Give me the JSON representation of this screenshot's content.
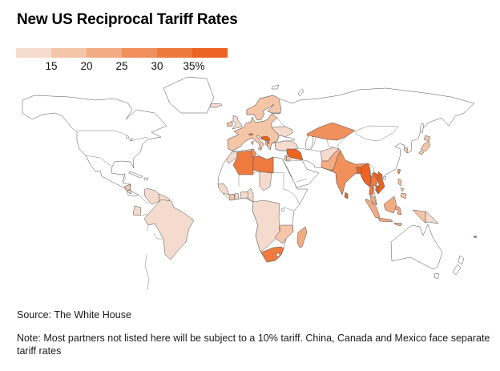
{
  "title": "New US Reciprocal Tariff Rates",
  "legend": {
    "labels": [
      "15",
      "20",
      "25",
      "30",
      "35%"
    ],
    "colors": [
      "#f5dbcd",
      "#f5c5a8",
      "#f3ab83",
      "#f0905c",
      "#ee7a3e",
      "#ec6424"
    ]
  },
  "source": "Source: The White House",
  "note": "Note: Most partners not listed here will be subject to a 10% tariff. China, Canada and Mexico face separate tariff rates",
  "map": {
    "ocean_color": "#ffffff",
    "land_color": "#ffffff",
    "border_color": "#4d4d4d"
  },
  "chart_data": {
    "type": "heatmap",
    "subtype": "world-choropleth",
    "title": "New US Reciprocal Tariff Rates",
    "legend_ticks": [
      15,
      20,
      25,
      30,
      35
    ],
    "legend_tick_suffix": "%",
    "bucket_ranges": [
      "<15",
      "15-20",
      "20-25",
      "25-30",
      "30-35",
      ">35"
    ],
    "bucket_colors": [
      "#f5dbcd",
      "#f5c5a8",
      "#f3ab83",
      "#f0905c",
      "#ee7a3e",
      "#ec6424"
    ],
    "uncolored_note": "White countries (US, Canada, Mexico, China, Russia, Australia, most of Middle East, Andean states) are not shaded",
    "regions": [
      {
        "name": "nicaragua",
        "bucket": 1
      },
      {
        "name": "costa-rica",
        "bucket": 0
      },
      {
        "name": "venezuela",
        "bucket": 0
      },
      {
        "name": "guyana",
        "bucket": 0
      },
      {
        "name": "ecuador",
        "bucket": 0
      },
      {
        "name": "brazil",
        "bucket": 0
      },
      {
        "name": "iceland",
        "bucket": 0
      },
      {
        "name": "uk",
        "bucket": 0
      },
      {
        "name": "ireland",
        "bucket": 1
      },
      {
        "name": "eu-mainland",
        "bucket": 1
      },
      {
        "name": "scandinavia",
        "bucket": 1
      },
      {
        "name": "sicily",
        "bucket": 1
      },
      {
        "name": "sardinia",
        "bucket": 1
      },
      {
        "name": "switzerland",
        "bucket": 4
      },
      {
        "name": "balkans-serbia-bosnia",
        "bucket": 5
      },
      {
        "name": "albania",
        "bucket": 0
      },
      {
        "name": "north-macedonia",
        "bucket": 4
      },
      {
        "name": "moldova",
        "bucket": 4
      },
      {
        "name": "ukraine",
        "bucket": 0
      },
      {
        "name": "turkey",
        "bucket": 0
      },
      {
        "name": "morocco",
        "bucket": 0
      },
      {
        "name": "algeria",
        "bucket": 4
      },
      {
        "name": "tunisia",
        "bucket": 3
      },
      {
        "name": "libya",
        "bucket": 4
      },
      {
        "name": "west-africa",
        "bucket": 0
      },
      {
        "name": "cote-divoire",
        "bucket": 1
      },
      {
        "name": "ghana",
        "bucket": 0
      },
      {
        "name": "nigeria",
        "bucket": 0
      },
      {
        "name": "cameroon",
        "bucket": 0
      },
      {
        "name": "chad",
        "bucket": 0
      },
      {
        "name": "central-southern-africa",
        "bucket": 0
      },
      {
        "name": "zimbabwe-mozambique",
        "bucket": 1
      },
      {
        "name": "south-africa",
        "bucket": 4
      },
      {
        "name": "madagascar",
        "bucket": 2
      },
      {
        "name": "iraq-syria",
        "bucket": 5
      },
      {
        "name": "jordan",
        "bucket": 1
      },
      {
        "name": "israel",
        "bucket": 1
      },
      {
        "name": "kazakhstan",
        "bucket": 3
      },
      {
        "name": "afghanistan",
        "bucket": 0
      },
      {
        "name": "pakistan",
        "bucket": 2
      },
      {
        "name": "india",
        "bucket": 3
      },
      {
        "name": "bangladesh",
        "bucket": 5
      },
      {
        "name": "sri-lanka",
        "bucket": 5
      },
      {
        "name": "myanmar",
        "bucket": 5
      },
      {
        "name": "thailand",
        "bucket": 4
      },
      {
        "name": "laos",
        "bucket": 5
      },
      {
        "name": "vietnam",
        "bucket": 5
      },
      {
        "name": "cambodia",
        "bucket": 5
      },
      {
        "name": "malaysia",
        "bucket": 2
      },
      {
        "name": "borneo",
        "bucket": 2
      },
      {
        "name": "sumatra",
        "bucket": 2
      },
      {
        "name": "java",
        "bucket": 2
      },
      {
        "name": "sulawesi",
        "bucket": 2
      },
      {
        "name": "lesser-sunda",
        "bucket": 2
      },
      {
        "name": "new-guinea-west",
        "bucket": 1
      },
      {
        "name": "new-guinea-east",
        "bucket": 0
      },
      {
        "name": "philippines-luzon",
        "bucket": 1
      },
      {
        "name": "philippines-visayas",
        "bucket": 1
      },
      {
        "name": "philippines-mindanao",
        "bucket": 1
      },
      {
        "name": "taiwan",
        "bucket": 3
      },
      {
        "name": "japan-hokkaido",
        "bucket": 1
      },
      {
        "name": "japan-honshu",
        "bucket": 1
      },
      {
        "name": "japan-kyushu",
        "bucket": 1
      },
      {
        "name": "south-korea",
        "bucket": 1
      },
      {
        "name": "fiji",
        "bucket": 3
      }
    ]
  }
}
